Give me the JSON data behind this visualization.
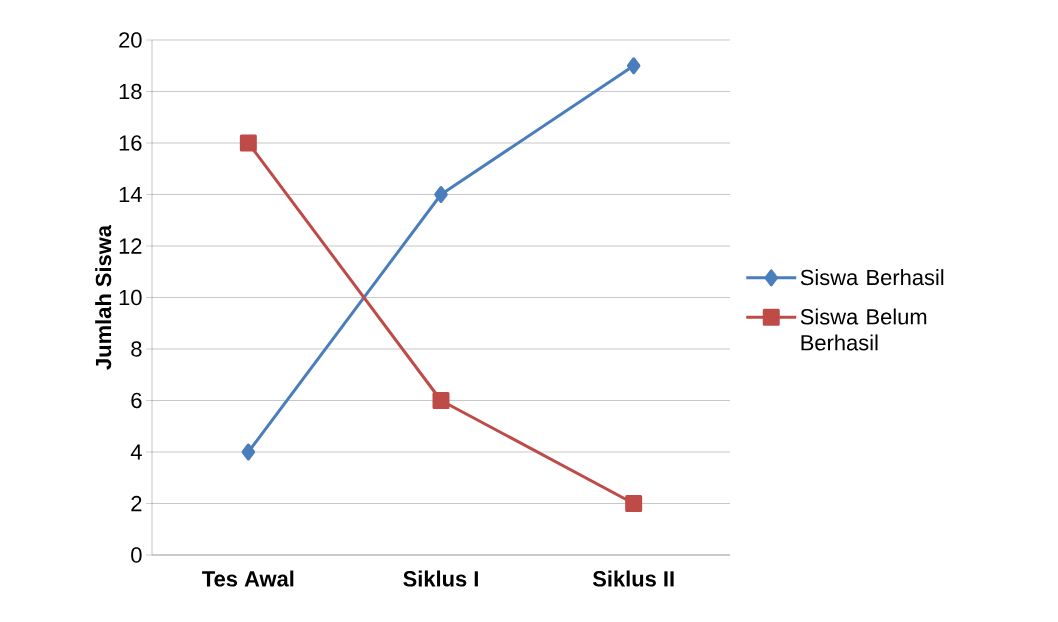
{
  "chart_data": {
    "type": "line",
    "ylabel": "Jumlah Siswa",
    "categories": [
      "Tes Awal",
      "Siklus I",
      "Siklus II"
    ],
    "series": [
      {
        "name": "Siswa Berhasil",
        "color": "#4a7ebb",
        "values": [
          4,
          14,
          19
        ],
        "marker": "diamond"
      },
      {
        "name": "Siswa Belum Berhasil",
        "color": "#be4b48",
        "values": [
          16,
          6,
          2
        ],
        "marker": "square"
      }
    ],
    "ylim": [
      0,
      20
    ],
    "yticks": [
      0,
      2,
      4,
      6,
      8,
      10,
      12,
      14,
      16,
      18,
      20
    ],
    "grid": "y",
    "legend": "right"
  }
}
